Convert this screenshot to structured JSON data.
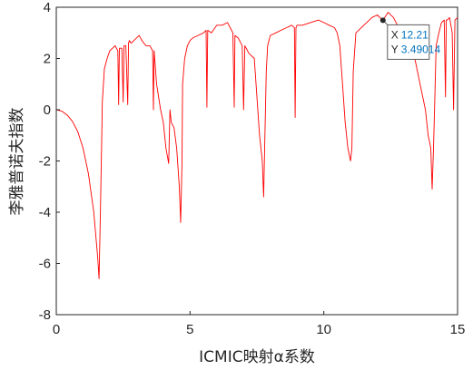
{
  "chart_data": {
    "type": "line",
    "title": "",
    "xlabel": "ICMIC映射α系数",
    "ylabel": "李雅普诺夫指数",
    "xlim": [
      0,
      15
    ],
    "ylim": [
      -8,
      4
    ],
    "xticks": [
      0,
      5,
      10,
      15
    ],
    "xtick_labels": [
      "0",
      "5",
      "10",
      "15"
    ],
    "yticks": [
      4,
      2,
      0,
      -2,
      -4,
      -6,
      -8
    ],
    "ytick_labels": [
      "4",
      "2",
      "0",
      "-2",
      "-4",
      "-6",
      "-8"
    ],
    "grid": false,
    "series": [
      {
        "color": "#ff0000",
        "x": [
          0,
          0.2,
          0.4,
          0.6,
          0.8,
          1.0,
          1.2,
          1.4,
          1.55,
          1.6,
          1.65,
          1.7,
          1.72,
          1.8,
          1.9,
          2.0,
          2.1,
          2.2,
          2.3,
          2.33,
          2.36,
          2.45,
          2.5,
          2.53,
          2.6,
          2.67,
          2.7,
          2.73,
          2.8,
          2.9,
          3.0,
          3.1,
          3.2,
          3.35,
          3.5,
          3.6,
          3.63,
          3.66,
          3.75,
          3.9,
          4.0,
          4.1,
          4.2,
          4.25,
          4.3,
          4.4,
          4.5,
          4.6,
          4.65,
          4.7,
          4.72,
          4.8,
          4.9,
          5.0,
          5.1,
          5.3,
          5.5,
          5.6,
          5.63,
          5.66,
          5.8,
          6.0,
          6.2,
          6.4,
          6.6,
          6.65,
          6.68,
          6.8,
          6.95,
          7.0,
          7.05,
          7.2,
          7.4,
          7.5,
          7.6,
          7.7,
          7.75,
          7.8,
          7.85,
          7.9,
          8.0,
          8.2,
          8.4,
          8.6,
          8.8,
          8.9,
          8.93,
          8.96,
          9.0,
          9.2,
          9.5,
          9.8,
          10.0,
          10.2,
          10.4,
          10.5,
          10.6,
          10.7,
          10.8,
          10.9,
          11.0,
          11.05,
          11.1,
          11.2,
          11.4,
          11.6,
          11.8,
          12.0,
          12.21,
          12.4,
          12.6,
          12.8,
          13.0,
          13.2,
          13.4,
          13.6,
          13.8,
          13.9,
          14.0,
          14.05,
          14.1,
          14.15,
          14.2,
          14.3,
          14.4,
          14.5,
          14.55,
          14.58,
          14.62,
          14.7,
          14.8,
          14.85,
          14.9,
          15.0
        ],
        "y": [
          0,
          -0.05,
          -0.2,
          -0.45,
          -0.85,
          -1.5,
          -2.5,
          -4.0,
          -5.8,
          -6.6,
          -4.0,
          -1.0,
          0.3,
          1.6,
          2.0,
          2.3,
          2.4,
          2.5,
          2.3,
          0.2,
          2.4,
          2.4,
          0.3,
          2.5,
          2.5,
          0.2,
          2.6,
          2.7,
          2.6,
          2.7,
          2.8,
          2.9,
          2.7,
          2.5,
          2.5,
          2.3,
          0.0,
          2.3,
          1.0,
          0.0,
          -0.5,
          -1.5,
          -2.1,
          0.0,
          -0.5,
          -0.7,
          -1.5,
          -3.0,
          -4.4,
          -2.0,
          1.0,
          2.0,
          2.5,
          2.7,
          2.8,
          2.9,
          3.0,
          3.1,
          0.1,
          3.1,
          3.0,
          3.3,
          3.3,
          3.4,
          3.0,
          0.1,
          2.9,
          2.8,
          2.5,
          0.0,
          2.5,
          2.2,
          2.0,
          0.5,
          -1.0,
          -2.0,
          -3.4,
          -1.0,
          1.5,
          2.5,
          2.9,
          3.0,
          3.1,
          3.2,
          3.3,
          3.2,
          -0.3,
          3.2,
          3.3,
          3.3,
          3.4,
          3.5,
          3.4,
          3.3,
          3.2,
          3.0,
          2.5,
          1.0,
          -0.5,
          -1.5,
          -2.0,
          -1.5,
          1.5,
          3.0,
          3.2,
          3.4,
          3.6,
          3.7,
          3.49014,
          3.8,
          3.6,
          3.2,
          2.9,
          2.6,
          2.0,
          1.0,
          0.0,
          -1.0,
          -1.5,
          -3.1,
          -1.5,
          0.5,
          2.5,
          3.0,
          3.4,
          3.5,
          0.5,
          3.5,
          3.5,
          3.6,
          3.0,
          0.0,
          3.5,
          3.6
        ]
      }
    ],
    "datatip": {
      "x_label": "X",
      "x_value": "12.21",
      "y_label": "Y",
      "y_value": "3.49014",
      "x": 12.21,
      "y": 3.49014
    }
  }
}
